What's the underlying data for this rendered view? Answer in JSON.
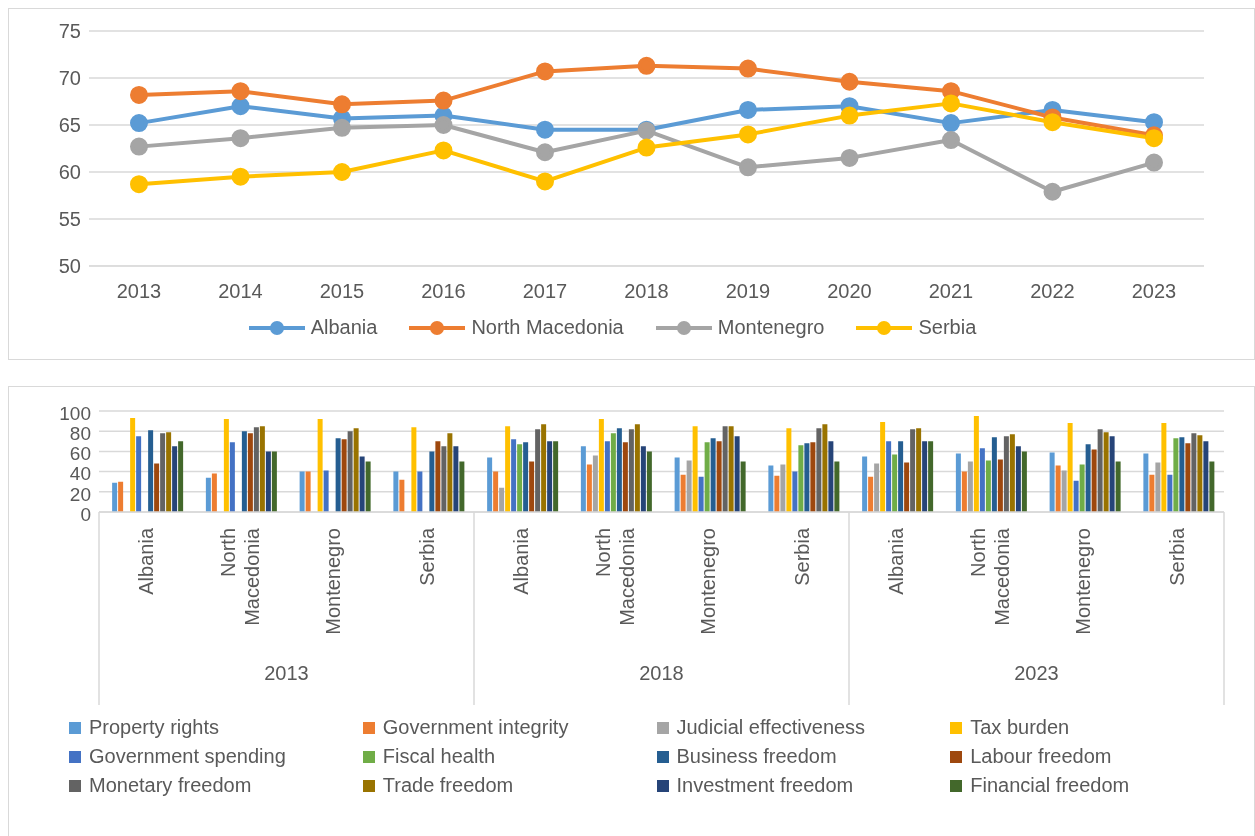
{
  "chart_data": [
    {
      "type": "line",
      "categories": [
        "2013",
        "2014",
        "2015",
        "2016",
        "2017",
        "2018",
        "2019",
        "2020",
        "2021",
        "2022",
        "2023"
      ],
      "ylim": [
        50,
        75
      ],
      "yticks": [
        50,
        55,
        60,
        65,
        70,
        75
      ],
      "grid": "y",
      "legend": "bottom",
      "marker": "circle",
      "line_style": "solid",
      "series": [
        {
          "name": "Albania",
          "color": "#5b9bd5",
          "values": [
            65.2,
            67.0,
            65.7,
            66.0,
            64.5,
            64.5,
            66.6,
            67.0,
            65.2,
            66.6,
            65.3
          ]
        },
        {
          "name": "North Macedonia",
          "color": "#ed7d31",
          "values": [
            68.2,
            68.6,
            67.2,
            67.6,
            70.7,
            71.3,
            71.0,
            69.6,
            68.6,
            65.8,
            63.9
          ]
        },
        {
          "name": "Montenegro",
          "color": "#a5a5a5",
          "values": [
            62.7,
            63.6,
            64.7,
            65.0,
            62.1,
            64.4,
            60.5,
            61.5,
            63.4,
            57.9,
            61.0
          ]
        },
        {
          "name": "Serbia",
          "color": "#ffc000",
          "values": [
            58.7,
            59.5,
            60.0,
            62.3,
            59.0,
            62.6,
            64.0,
            66.0,
            67.3,
            65.3,
            63.6
          ]
        }
      ]
    },
    {
      "type": "bar",
      "categories": [
        "Albania",
        "North Macedonia",
        "Montenegro",
        "Serbia",
        "Albania",
        "North Macedonia",
        "Montenegro",
        "Serbia",
        "Albania",
        "North Macedonia",
        "Montenegro",
        "Serbia"
      ],
      "annotations": [
        "2013",
        "2018",
        "2023"
      ],
      "ylim": [
        0,
        100
      ],
      "yticks": [
        0,
        20,
        40,
        60,
        80,
        100
      ],
      "grid": "y",
      "legend": "bottom",
      "series": [
        {
          "name": "Property rights",
          "color": "#5b9bd5",
          "values": [
            29,
            34,
            40,
            40,
            54,
            65,
            54,
            46,
            55,
            58,
            59,
            58
          ]
        },
        {
          "name": "Government integrity",
          "color": "#ed7d31",
          "values": [
            30,
            38,
            40,
            32,
            40,
            47,
            37,
            36,
            35,
            40,
            46,
            37
          ]
        },
        {
          "name": "Judicial effectiveness",
          "color": "#a5a5a5",
          "values": [
            null,
            null,
            null,
            null,
            24,
            56,
            51,
            47,
            48,
            50,
            41,
            49
          ]
        },
        {
          "name": "Tax burden",
          "color": "#ffc000",
          "values": [
            93,
            92,
            92,
            84,
            85,
            92,
            85,
            83,
            89,
            95,
            88,
            88
          ]
        },
        {
          "name": "Government spending",
          "color": "#4472c4",
          "values": [
            75,
            69,
            41,
            40,
            72,
            70,
            35,
            40,
            70,
            63,
            31,
            37
          ]
        },
        {
          "name": "Fiscal health",
          "color": "#70ad47",
          "values": [
            null,
            null,
            null,
            null,
            67,
            78,
            69,
            66,
            57,
            51,
            47,
            73
          ]
        },
        {
          "name": "Business freedom",
          "color": "#255e91",
          "values": [
            81,
            80,
            73,
            60,
            69,
            83,
            73,
            68,
            70,
            74,
            67,
            74
          ]
        },
        {
          "name": "Labour freedom",
          "color": "#9e480e",
          "values": [
            48,
            78,
            72,
            70,
            50,
            69,
            70,
            69,
            49,
            52,
            62,
            68
          ]
        },
        {
          "name": "Monetary freedom",
          "color": "#636363",
          "values": [
            78,
            84,
            80,
            65,
            82,
            82,
            85,
            83,
            82,
            75,
            82,
            78
          ]
        },
        {
          "name": "Trade freedom",
          "color": "#997300",
          "values": [
            79,
            85,
            83,
            78,
            87,
            87,
            85,
            87,
            83,
            77,
            79,
            76
          ]
        },
        {
          "name": "Investment freedom",
          "color": "#264478",
          "values": [
            65,
            60,
            55,
            65,
            70,
            65,
            75,
            70,
            70,
            65,
            75,
            70
          ]
        },
        {
          "name": "Financial freedom",
          "color": "#43682b",
          "values": [
            70,
            60,
            50,
            50,
            70,
            60,
            50,
            50,
            70,
            60,
            50,
            50
          ]
        }
      ]
    }
  ]
}
